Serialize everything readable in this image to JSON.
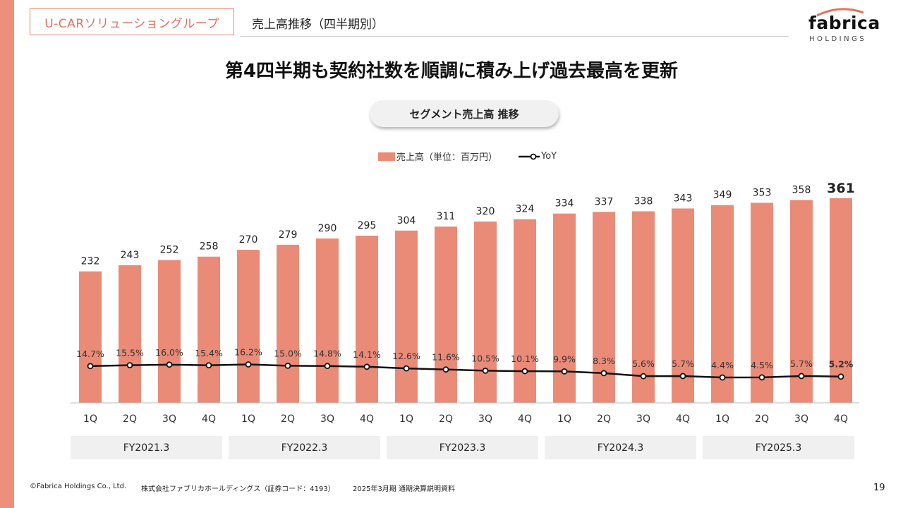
{
  "header": {
    "segment_label": "U-CARソリューショングループ",
    "section_title": "売上高推移（四半期別）",
    "logo_main": "fabrica",
    "logo_sub": "HOLDINGS"
  },
  "headline": "第4四半期も契約社数を順調に積み上げ過去最高を更新",
  "pill_label": "セグメント売上高 推移",
  "legend": {
    "bar": "売上高（単位：百万円）",
    "line": "YoY"
  },
  "colors": {
    "bar": "#ea8b78",
    "accent": "#ee8f7c",
    "line": "#111111"
  },
  "chart_data": {
    "type": "bar",
    "categories": [
      "1Q",
      "2Q",
      "3Q",
      "4Q",
      "1Q",
      "2Q",
      "3Q",
      "4Q",
      "1Q",
      "2Q",
      "3Q",
      "4Q",
      "1Q",
      "2Q",
      "3Q",
      "4Q",
      "1Q",
      "2Q",
      "3Q",
      "4Q"
    ],
    "groups": [
      "FY2021.3",
      "FY2022.3",
      "FY2023.3",
      "FY2024.3",
      "FY2025.3"
    ],
    "series": [
      {
        "name": "売上高（単位：百万円）",
        "type": "bar",
        "values": [
          232,
          243,
          252,
          258,
          270,
          279,
          290,
          295,
          304,
          311,
          320,
          324,
          334,
          337,
          338,
          343,
          349,
          353,
          358,
          361
        ]
      },
      {
        "name": "YoY",
        "type": "line",
        "values": [
          14.7,
          15.5,
          16.0,
          15.4,
          16.2,
          15.0,
          14.8,
          14.1,
          12.6,
          11.6,
          10.5,
          10.1,
          9.9,
          8.3,
          5.6,
          5.7,
          4.4,
          4.5,
          5.7,
          5.2
        ],
        "labels": [
          "14.7%",
          "15.5%",
          "16.0%",
          "15.4%",
          "16.2%",
          "15.0%",
          "14.8%",
          "14.1%",
          "12.6%",
          "11.6%",
          "10.5%",
          "10.1%",
          "9.9%",
          "8.3%",
          "5.6%",
          "5.7%",
          "4.4%",
          "4.5%",
          "5.7%",
          "5.2%"
        ]
      }
    ],
    "highlight_index": 19,
    "grid": false,
    "legend_position": "top-center"
  },
  "footer": {
    "copyright": "©Fabrica Holdings Co., Ltd.",
    "company": "株式会社ファブリカホールディングス（証券コード：4193）",
    "doc": "2025年3月期 通期決算説明資料",
    "page": "19"
  }
}
